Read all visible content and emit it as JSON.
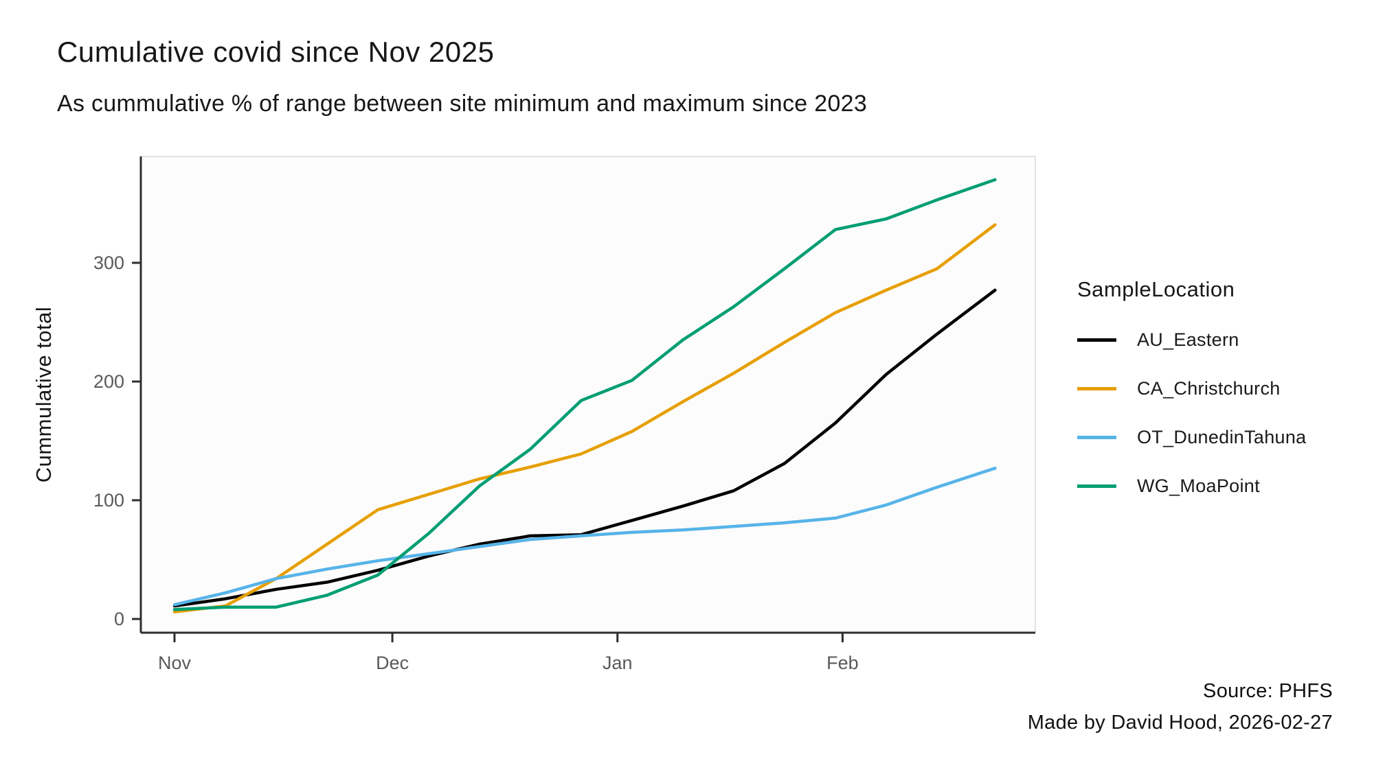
{
  "title": "Cumulative covid since Nov 2025",
  "subtitle": "As cummulative % of range between site minimum and maximum since 2023",
  "caption": {
    "source": "Source: PHFS",
    "credit": "Made by David Hood, 2026-02-27"
  },
  "colors": {
    "black_series": "#000000",
    "orange_series": "#E69F00",
    "blue_series": "#56B4E9",
    "green_series": "#009E73",
    "axis_line": "#2e2e2e",
    "tick_label": "#595959",
    "panel_border": "#e3e3e3",
    "panel_background": "#fcfcfc"
  },
  "chart_data": {
    "type": "line",
    "title": "Cumulative covid since Nov 2025",
    "subtitle": "As cummulative % of range between site minimum and maximum since 2023",
    "xlabel": "",
    "ylabel": "Cummulative total",
    "legend_title": "SampleLocation",
    "legend_position": "right",
    "grid": false,
    "x_unit": "days since Nov 1",
    "x_ticks": [
      {
        "label": "Nov",
        "day": 0
      },
      {
        "label": "Dec",
        "day": 30
      },
      {
        "label": "Jan",
        "day": 61
      },
      {
        "label": "Feb",
        "day": 92
      }
    ],
    "y_ticks": [
      0,
      100,
      200,
      300
    ],
    "ylim": [
      -12,
      390
    ],
    "xlim": [
      -4.6,
      118.5
    ],
    "days": [
      0,
      7,
      14,
      21,
      28,
      35,
      42,
      49,
      56,
      63,
      70,
      77,
      84,
      91,
      98,
      105,
      113
    ],
    "series": [
      {
        "name": "AU_Eastern",
        "color": "#000000",
        "values": [
          11,
          17,
          25,
          31,
          41,
          53,
          63,
          70,
          71,
          83,
          95,
          108,
          131,
          165,
          206,
          240,
          277
        ]
      },
      {
        "name": "CA_Christchurch",
        "color": "#E69F00",
        "values": [
          6,
          11,
          34,
          63,
          92,
          105,
          118,
          128,
          139,
          158,
          183,
          207,
          233,
          258,
          277,
          295,
          332
        ]
      },
      {
        "name": "OT_DunedinTahuna",
        "color": "#56B4E9",
        "values": [
          12,
          22,
          34,
          42,
          49,
          55,
          61,
          67,
          70,
          73,
          75,
          78,
          81,
          85,
          96,
          111,
          127
        ]
      },
      {
        "name": "WG_MoaPoint",
        "color": "#009E73",
        "values": [
          8,
          10,
          10,
          20,
          37,
          72,
          112,
          143,
          184,
          201,
          235,
          263,
          295,
          328,
          337,
          353,
          370
        ]
      }
    ]
  }
}
